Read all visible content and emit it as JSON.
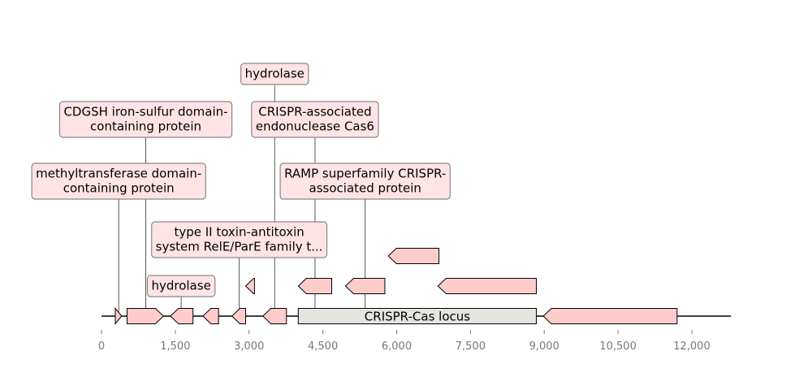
{
  "colors": {
    "gene_fill": "#ffcccc",
    "label_fill": "#ffe4e6",
    "label_stroke": "#888888",
    "locus_fill": "#e5e4de",
    "tick_text": "#777777"
  },
  "locus": {
    "label": "CRISPR-Cas locus",
    "start": 4000,
    "end": 8840
  },
  "axis": {
    "min": 0,
    "max": 12800,
    "ticks": [
      {
        "value": 0,
        "label": "0"
      },
      {
        "value": 1500,
        "label": "1,500"
      },
      {
        "value": 3000,
        "label": "3,000"
      },
      {
        "value": 4500,
        "label": "4,500"
      },
      {
        "value": 6000,
        "label": "6,000"
      },
      {
        "value": 7500,
        "label": "7,500"
      },
      {
        "value": 9000,
        "label": "9,000"
      },
      {
        "value": 10500,
        "label": "10,500"
      },
      {
        "value": 12000,
        "label": "12,000"
      }
    ]
  },
  "genes": [
    {
      "start": 280,
      "end": 410,
      "strand": "+",
      "track": 0
    },
    {
      "start": 520,
      "end": 1260,
      "strand": "+",
      "track": 0
    },
    {
      "start": 1400,
      "end": 1860,
      "strand": "-",
      "track": 0
    },
    {
      "start": 2060,
      "end": 2380,
      "strand": "-",
      "track": 0
    },
    {
      "start": 2650,
      "end": 2930,
      "strand": "-",
      "track": 0
    },
    {
      "start": 3280,
      "end": 3760,
      "strand": "-",
      "track": 0
    },
    {
      "start": 2930,
      "end": 3110,
      "strand": "-",
      "track": 1
    },
    {
      "start": 4000,
      "end": 4680,
      "strand": "-",
      "track": 1
    },
    {
      "start": 4960,
      "end": 5760,
      "strand": "-",
      "track": 1
    },
    {
      "start": 5830,
      "end": 6860,
      "strand": "-",
      "track": 2
    },
    {
      "start": 6840,
      "end": 8840,
      "strand": "-",
      "track": 1
    },
    {
      "start": 8980,
      "end": 11700,
      "strand": "-",
      "track": 0
    }
  ],
  "annotations": [
    {
      "text": [
        "hydrolase"
      ],
      "pos": 1620,
      "level": 0
    },
    {
      "text": [
        "type II toxin-antitoxin",
        "system RelE/ParE family t..."
      ],
      "pos": 2800,
      "level": 1
    },
    {
      "text": [
        "methyltransferase domain-",
        "containing protein"
      ],
      "pos": 350,
      "level": 2
    },
    {
      "text": [
        "CDGSH iron-sulfur domain-",
        "containing protein"
      ],
      "pos": 900,
      "level": 3
    },
    {
      "text": [
        "RAMP superfamily CRISPR-",
        "associated protein"
      ],
      "pos": 5360,
      "level": 2
    },
    {
      "text": [
        "CRISPR-associated",
        "endonuclease Cas6"
      ],
      "pos": 4340,
      "level": 3
    },
    {
      "text": [
        "hydrolase"
      ],
      "pos": 3520,
      "level": 4
    }
  ]
}
